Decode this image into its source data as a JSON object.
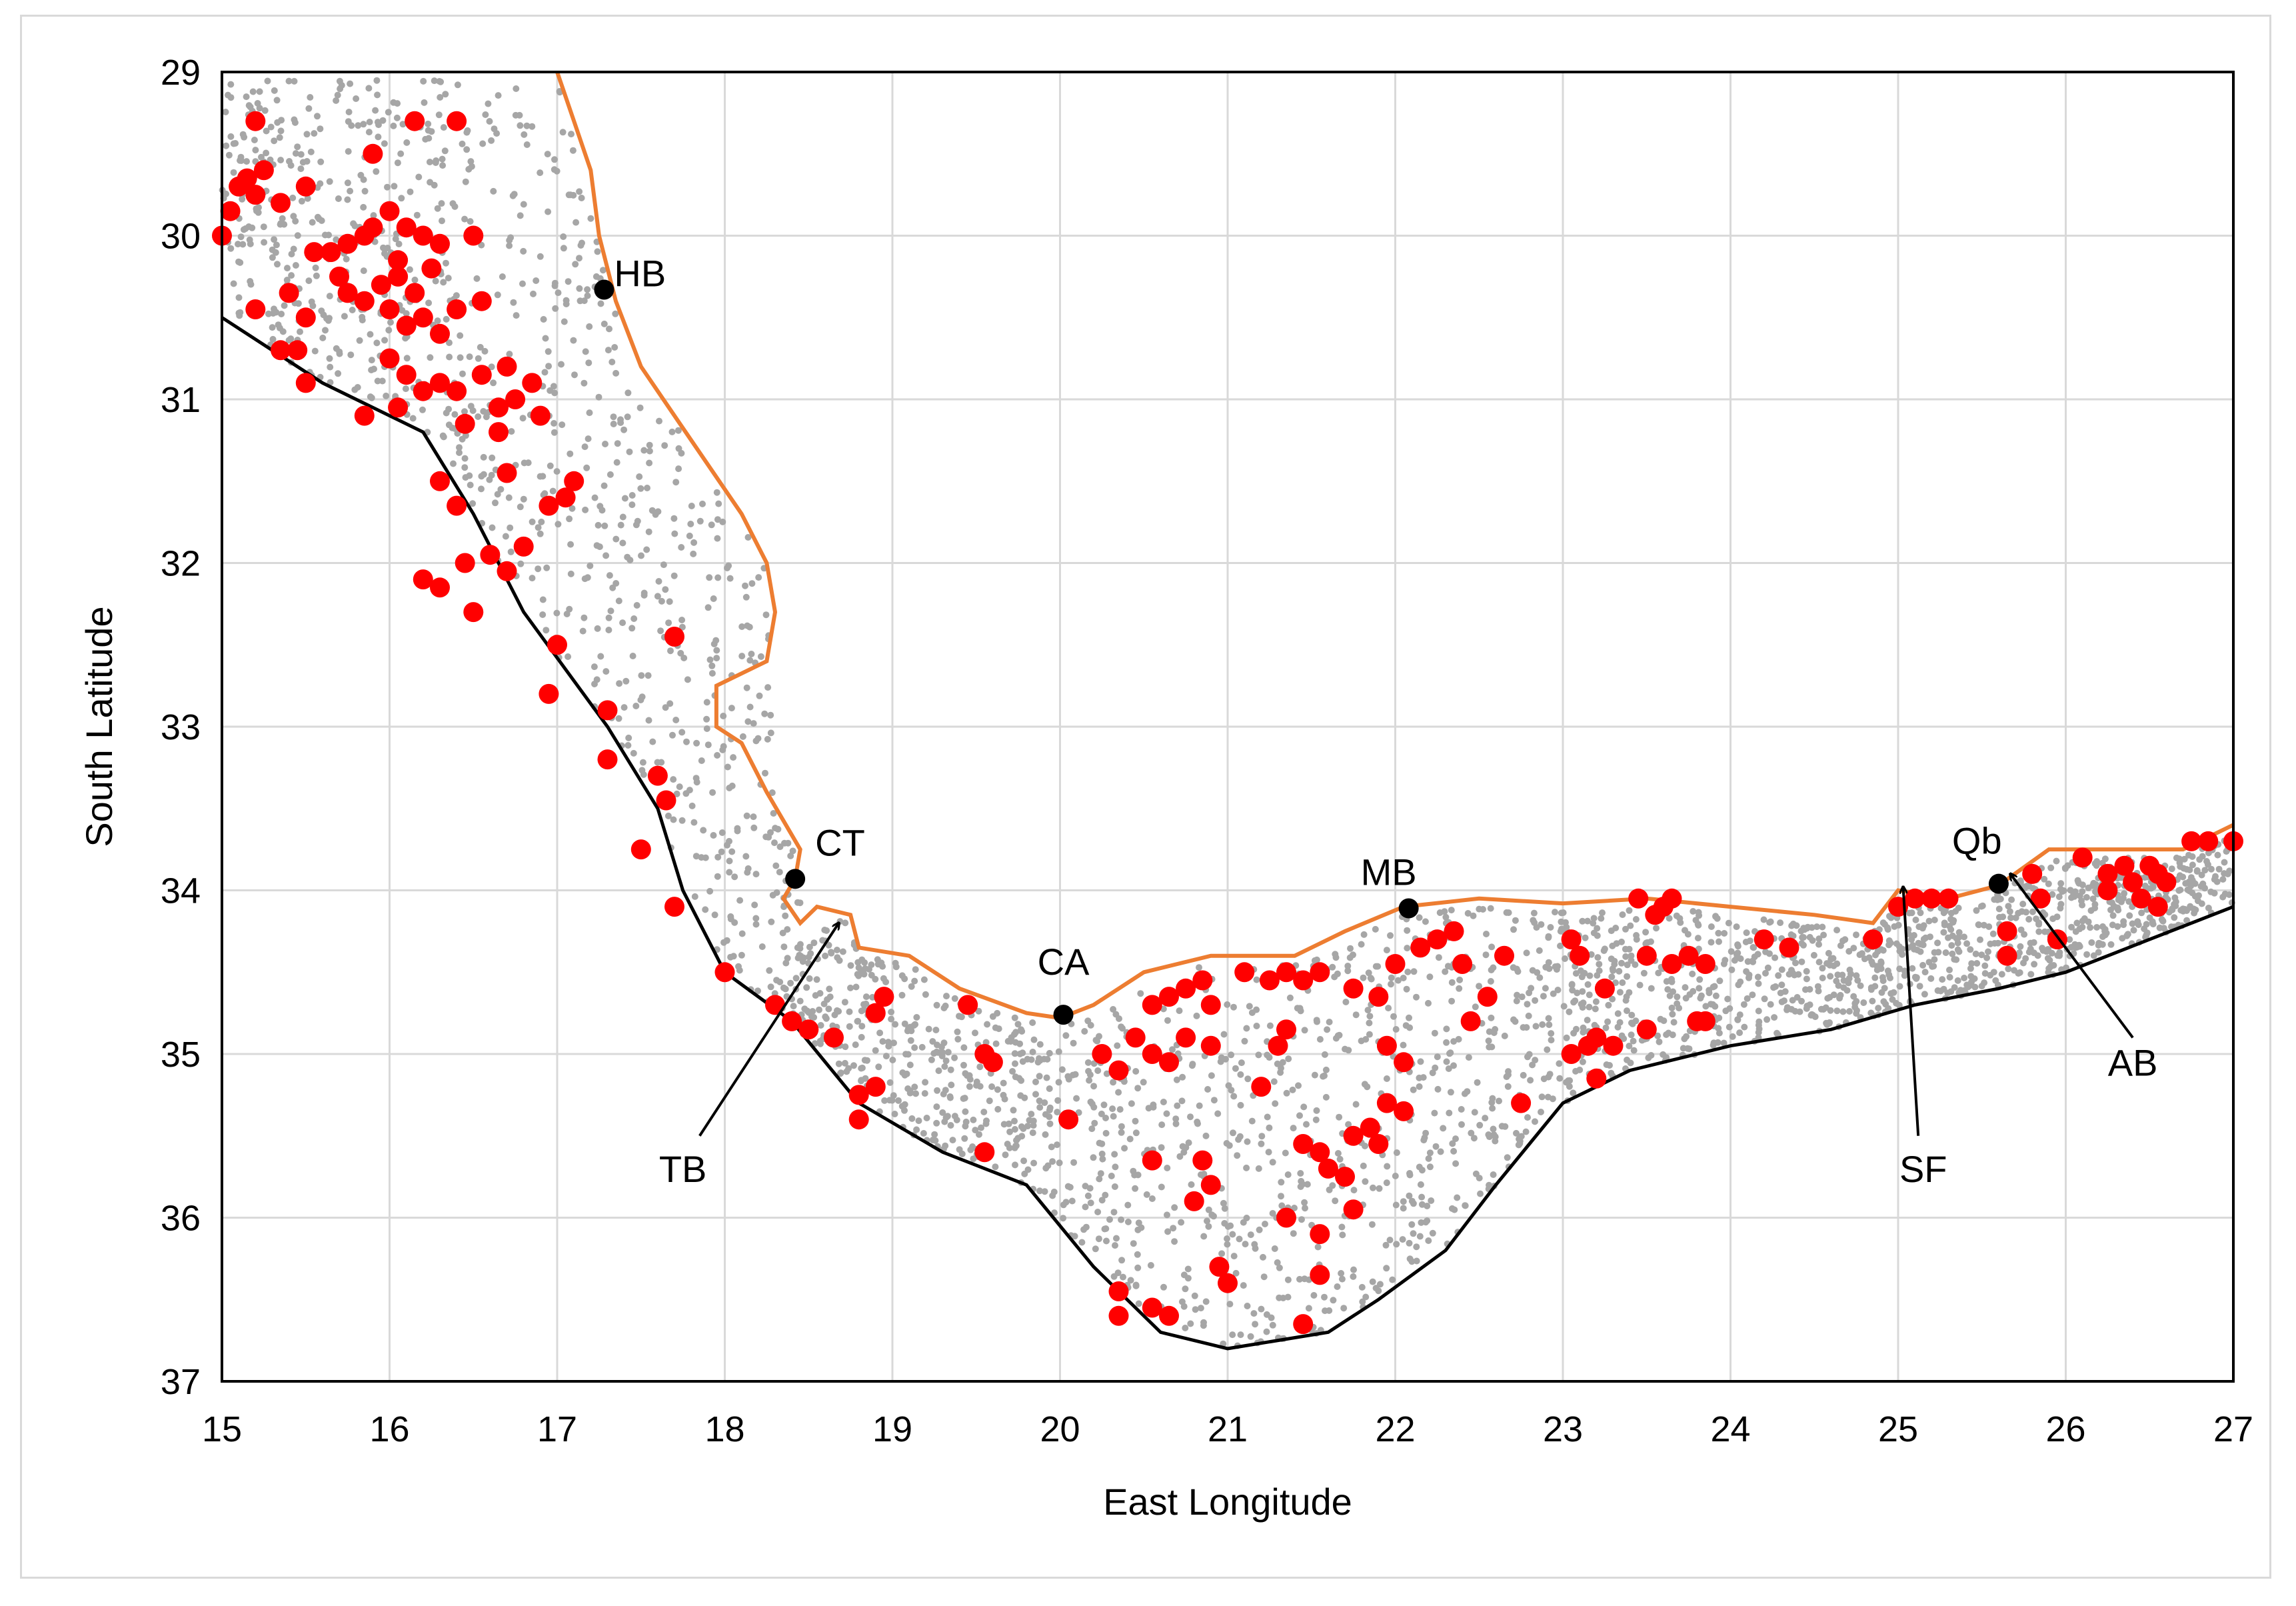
{
  "chart_data": {
    "type": "scatter",
    "xlabel": "East  Longitude",
    "ylabel": "South Latitude",
    "xlim": [
      15,
      27
    ],
    "ylim": [
      29,
      37
    ],
    "y_inverted": true,
    "grid": true,
    "x_ticks": [
      "15",
      "16",
      "17",
      "18",
      "19",
      "20",
      "21",
      "22",
      "23",
      "24",
      "25",
      "26",
      "27"
    ],
    "y_ticks": [
      "29",
      "30",
      "31",
      "32",
      "33",
      "34",
      "35",
      "36",
      "37"
    ],
    "colors": {
      "grey_points": "#a6a6a6",
      "red_points": "#ff0000",
      "coast_line": "#ed7d31",
      "shelf_line": "#000000",
      "towns": "#000000",
      "grid": "#d9d9d9"
    },
    "coast_line": [
      [
        17.0,
        29.0
      ],
      [
        17.1,
        29.3
      ],
      [
        17.2,
        29.6
      ],
      [
        17.25,
        30.0
      ],
      [
        17.35,
        30.4
      ],
      [
        17.5,
        30.8
      ],
      [
        17.7,
        31.1
      ],
      [
        17.9,
        31.4
      ],
      [
        18.1,
        31.7
      ],
      [
        18.25,
        32.0
      ],
      [
        18.3,
        32.3
      ],
      [
        18.25,
        32.6
      ],
      [
        17.95,
        32.75
      ],
      [
        17.95,
        33.0
      ],
      [
        18.1,
        33.1
      ],
      [
        18.25,
        33.4
      ],
      [
        18.45,
        33.75
      ],
      [
        18.42,
        33.93
      ],
      [
        18.35,
        34.05
      ],
      [
        18.45,
        34.2
      ],
      [
        18.55,
        34.1
      ],
      [
        18.75,
        34.15
      ],
      [
        18.8,
        34.35
      ],
      [
        19.1,
        34.4
      ],
      [
        19.4,
        34.6
      ],
      [
        19.8,
        34.75
      ],
      [
        20.0,
        34.78
      ],
      [
        20.2,
        34.7
      ],
      [
        20.5,
        34.5
      ],
      [
        20.9,
        34.4
      ],
      [
        21.4,
        34.4
      ],
      [
        21.7,
        34.25
      ],
      [
        22.05,
        34.1
      ],
      [
        22.5,
        34.05
      ],
      [
        23.0,
        34.08
      ],
      [
        23.5,
        34.05
      ],
      [
        24.0,
        34.1
      ],
      [
        24.5,
        34.15
      ],
      [
        24.85,
        34.2
      ],
      [
        25.0,
        34.0
      ],
      [
        25.3,
        34.05
      ],
      [
        25.6,
        33.97
      ],
      [
        25.9,
        33.75
      ],
      [
        26.3,
        33.75
      ],
      [
        26.7,
        33.75
      ],
      [
        27.0,
        33.6
      ]
    ],
    "shelf_line": [
      [
        15.0,
        30.5
      ],
      [
        15.6,
        30.9
      ],
      [
        16.2,
        31.2
      ],
      [
        16.5,
        31.7
      ],
      [
        16.8,
        32.3
      ],
      [
        17.3,
        33.0
      ],
      [
        17.6,
        33.5
      ],
      [
        17.75,
        34.0
      ],
      [
        18.0,
        34.5
      ],
      [
        18.4,
        34.8
      ],
      [
        18.8,
        35.3
      ],
      [
        19.3,
        35.6
      ],
      [
        19.8,
        35.8
      ],
      [
        20.2,
        36.3
      ],
      [
        20.6,
        36.7
      ],
      [
        21.0,
        36.8
      ],
      [
        21.6,
        36.7
      ],
      [
        21.9,
        36.5
      ],
      [
        22.3,
        36.2
      ],
      [
        22.6,
        35.8
      ],
      [
        23.0,
        35.3
      ],
      [
        23.4,
        35.1
      ],
      [
        24.0,
        34.95
      ],
      [
        24.6,
        34.85
      ],
      [
        25.1,
        34.7
      ],
      [
        25.6,
        34.6
      ],
      [
        26.0,
        34.5
      ],
      [
        26.5,
        34.3
      ],
      [
        27.0,
        34.1
      ]
    ],
    "towns": [
      {
        "code": "HB",
        "lon": 17.28,
        "lat": 30.33
      },
      {
        "code": "CT",
        "lon": 18.42,
        "lat": 33.93
      },
      {
        "code": "CA",
        "lon": 20.02,
        "lat": 34.76
      },
      {
        "code": "MB",
        "lon": 22.08,
        "lat": 34.11
      },
      {
        "code": "Qb",
        "lon": 25.6,
        "lat": 33.96
      }
    ],
    "annotations": [
      {
        "text": "TB",
        "label_lon": 17.75,
        "label_lat": 35.7,
        "arrow_from": [
          17.85,
          35.5
        ],
        "arrow_to": [
          18.68,
          34.2
        ]
      },
      {
        "text": "SF",
        "label_lon": 25.15,
        "label_lat": 35.7,
        "arrow_from": [
          25.12,
          35.5
        ],
        "arrow_to": [
          25.03,
          33.98
        ]
      },
      {
        "text": "AB",
        "label_lon": 26.4,
        "label_lat": 35.05,
        "arrow_from": [
          26.4,
          34.9
        ],
        "arrow_to": [
          25.67,
          33.9
        ]
      }
    ],
    "red_points": [
      [
        15.2,
        29.3
      ],
      [
        15.15,
        29.65
      ],
      [
        15.25,
        29.6
      ],
      [
        15.2,
        29.75
      ],
      [
        15.1,
        29.7
      ],
      [
        15.35,
        29.8
      ],
      [
        15.05,
        29.85
      ],
      [
        15.5,
        29.7
      ],
      [
        15.0,
        30.0
      ],
      [
        15.65,
        30.1
      ],
      [
        15.75,
        30.05
      ],
      [
        15.85,
        30.0
      ],
      [
        15.9,
        29.95
      ],
      [
        16.0,
        29.85
      ],
      [
        16.1,
        29.95
      ],
      [
        16.2,
        30.0
      ],
      [
        16.3,
        30.05
      ],
      [
        16.5,
        30.0
      ],
      [
        15.9,
        29.5
      ],
      [
        16.15,
        29.3
      ],
      [
        16.4,
        29.3
      ],
      [
        15.55,
        30.1
      ],
      [
        15.7,
        30.25
      ],
      [
        15.75,
        30.35
      ],
      [
        15.85,
        30.4
      ],
      [
        15.95,
        30.3
      ],
      [
        16.05,
        30.25
      ],
      [
        16.15,
        30.35
      ],
      [
        16.0,
        30.45
      ],
      [
        16.1,
        30.55
      ],
      [
        16.2,
        30.5
      ],
      [
        16.3,
        30.6
      ],
      [
        16.4,
        30.45
      ],
      [
        16.55,
        30.4
      ],
      [
        16.05,
        30.15
      ],
      [
        16.25,
        30.2
      ],
      [
        15.2,
        30.45
      ],
      [
        15.4,
        30.35
      ],
      [
        15.5,
        30.5
      ],
      [
        15.35,
        30.7
      ],
      [
        15.45,
        30.7
      ],
      [
        15.5,
        30.9
      ],
      [
        16.0,
        30.75
      ],
      [
        16.1,
        30.85
      ],
      [
        16.2,
        30.95
      ],
      [
        16.3,
        30.9
      ],
      [
        16.4,
        30.95
      ],
      [
        16.55,
        30.85
      ],
      [
        16.45,
        31.15
      ],
      [
        16.65,
        31.05
      ],
      [
        16.75,
        31.0
      ],
      [
        16.85,
        30.9
      ],
      [
        16.7,
        30.8
      ],
      [
        16.9,
        31.1
      ],
      [
        16.65,
        31.2
      ],
      [
        15.85,
        31.1
      ],
      [
        16.05,
        31.05
      ],
      [
        16.3,
        31.5
      ],
      [
        16.4,
        31.65
      ],
      [
        16.7,
        31.45
      ],
      [
        16.95,
        31.65
      ],
      [
        17.05,
        31.6
      ],
      [
        17.1,
        31.5
      ],
      [
        16.6,
        31.95
      ],
      [
        16.8,
        31.9
      ],
      [
        16.45,
        32.0
      ],
      [
        16.2,
        32.1
      ],
      [
        16.3,
        32.15
      ],
      [
        16.5,
        32.3
      ],
      [
        16.7,
        32.05
      ],
      [
        17.0,
        32.5
      ],
      [
        17.7,
        32.45
      ],
      [
        16.95,
        32.8
      ],
      [
        17.3,
        32.9
      ],
      [
        17.3,
        33.2
      ],
      [
        17.6,
        33.3
      ],
      [
        17.65,
        33.45
      ],
      [
        17.5,
        33.75
      ],
      [
        17.7,
        34.1
      ],
      [
        18.0,
        34.5
      ],
      [
        18.3,
        34.7
      ],
      [
        18.4,
        34.8
      ],
      [
        18.5,
        34.85
      ],
      [
        18.65,
        34.9
      ],
      [
        18.8,
        35.25
      ],
      [
        18.9,
        34.75
      ],
      [
        18.95,
        34.65
      ],
      [
        18.9,
        35.2
      ],
      [
        18.8,
        35.4
      ],
      [
        19.45,
        34.7
      ],
      [
        19.55,
        35.0
      ],
      [
        19.6,
        35.05
      ],
      [
        19.55,
        35.6
      ],
      [
        20.05,
        35.4
      ],
      [
        20.25,
        35.0
      ],
      [
        20.35,
        35.1
      ],
      [
        20.45,
        34.9
      ],
      [
        20.55,
        34.7
      ],
      [
        20.65,
        34.65
      ],
      [
        20.75,
        34.6
      ],
      [
        20.85,
        34.55
      ],
      [
        20.9,
        34.7
      ],
      [
        20.55,
        35.0
      ],
      [
        20.65,
        35.05
      ],
      [
        20.75,
        34.9
      ],
      [
        20.9,
        34.95
      ],
      [
        20.55,
        35.65
      ],
      [
        20.8,
        35.9
      ],
      [
        20.9,
        35.8
      ],
      [
        20.85,
        35.65
      ],
      [
        20.95,
        36.3
      ],
      [
        21.0,
        36.4
      ],
      [
        20.35,
        36.45
      ],
      [
        20.35,
        36.6
      ],
      [
        20.55,
        36.55
      ],
      [
        20.65,
        36.6
      ],
      [
        21.1,
        34.5
      ],
      [
        21.25,
        34.55
      ],
      [
        21.35,
        34.5
      ],
      [
        21.45,
        34.55
      ],
      [
        21.55,
        34.5
      ],
      [
        21.75,
        34.6
      ],
      [
        21.9,
        34.65
      ],
      [
        21.3,
        34.95
      ],
      [
        21.35,
        34.85
      ],
      [
        21.2,
        35.2
      ],
      [
        21.45,
        35.55
      ],
      [
        21.55,
        35.6
      ],
      [
        21.6,
        35.7
      ],
      [
        21.7,
        35.75
      ],
      [
        21.75,
        35.5
      ],
      [
        21.85,
        35.45
      ],
      [
        21.9,
        35.55
      ],
      [
        21.95,
        35.3
      ],
      [
        22.05,
        35.35
      ],
      [
        21.95,
        34.95
      ],
      [
        22.05,
        35.05
      ],
      [
        21.75,
        35.95
      ],
      [
        21.55,
        36.1
      ],
      [
        21.35,
        36.0
      ],
      [
        21.55,
        36.35
      ],
      [
        21.45,
        36.65
      ],
      [
        22.0,
        34.45
      ],
      [
        22.15,
        34.35
      ],
      [
        22.25,
        34.3
      ],
      [
        22.35,
        34.25
      ],
      [
        22.4,
        34.45
      ],
      [
        22.45,
        34.8
      ],
      [
        22.55,
        34.65
      ],
      [
        22.65,
        34.4
      ],
      [
        22.75,
        35.3
      ],
      [
        23.05,
        35.0
      ],
      [
        23.15,
        34.95
      ],
      [
        23.2,
        34.9
      ],
      [
        23.3,
        34.95
      ],
      [
        23.25,
        34.6
      ],
      [
        23.1,
        34.4
      ],
      [
        23.05,
        34.3
      ],
      [
        23.2,
        35.15
      ],
      [
        23.45,
        34.05
      ],
      [
        23.6,
        34.1
      ],
      [
        23.65,
        34.05
      ],
      [
        23.55,
        34.15
      ],
      [
        23.5,
        34.4
      ],
      [
        23.65,
        34.45
      ],
      [
        23.75,
        34.4
      ],
      [
        23.85,
        34.45
      ],
      [
        23.5,
        34.85
      ],
      [
        23.8,
        34.8
      ],
      [
        23.85,
        34.8
      ],
      [
        24.2,
        34.3
      ],
      [
        24.35,
        34.35
      ],
      [
        24.85,
        34.3
      ],
      [
        25.0,
        34.1
      ],
      [
        25.1,
        34.05
      ],
      [
        25.2,
        34.05
      ],
      [
        25.3,
        34.05
      ],
      [
        25.65,
        34.25
      ],
      [
        25.65,
        34.4
      ],
      [
        25.85,
        34.05
      ],
      [
        25.8,
        33.9
      ],
      [
        25.95,
        34.3
      ],
      [
        26.1,
        33.8
      ],
      [
        26.25,
        33.9
      ],
      [
        26.35,
        33.85
      ],
      [
        26.4,
        33.95
      ],
      [
        26.5,
        33.85
      ],
      [
        26.55,
        33.9
      ],
      [
        26.6,
        33.95
      ],
      [
        26.25,
        34.0
      ],
      [
        26.45,
        34.05
      ],
      [
        26.55,
        34.1
      ],
      [
        26.75,
        33.7
      ],
      [
        26.85,
        33.7
      ],
      [
        27.0,
        33.7
      ]
    ]
  }
}
